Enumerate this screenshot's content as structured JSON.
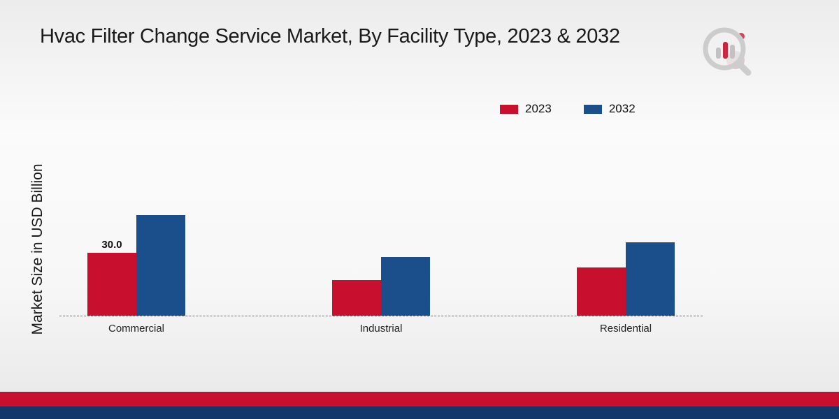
{
  "page": {
    "title": "Hvac Filter Change Service Market, By Facility Type, 2023 & 2032",
    "ylabel": "Market Size in USD Billion"
  },
  "brand_colors": {
    "red": "#c8102e",
    "navy": "#12386b",
    "footer_red": "#c8102e",
    "footer_navy": "#12386b"
  },
  "chart_data": {
    "type": "bar",
    "title": "Hvac Filter Change Service Market, By Facility Type, 2023 & 2032",
    "xlabel": "",
    "ylabel": "Market Size in USD Billion",
    "categories": [
      "Commercial",
      "Industrial",
      "Residential"
    ],
    "series": [
      {
        "name": "2023",
        "color": "#c8102e",
        "values": [
          30.0,
          17.0,
          23.0
        ],
        "labels": [
          "30.0",
          "",
          ""
        ]
      },
      {
        "name": "2032",
        "color": "#1a4f8b",
        "values": [
          48.0,
          28.0,
          35.0
        ],
        "labels": [
          "",
          "",
          ""
        ]
      }
    ],
    "ylim": [
      0,
      55
    ],
    "grid": false,
    "baseline_style": "dashed",
    "legend_position": "top-right"
  }
}
